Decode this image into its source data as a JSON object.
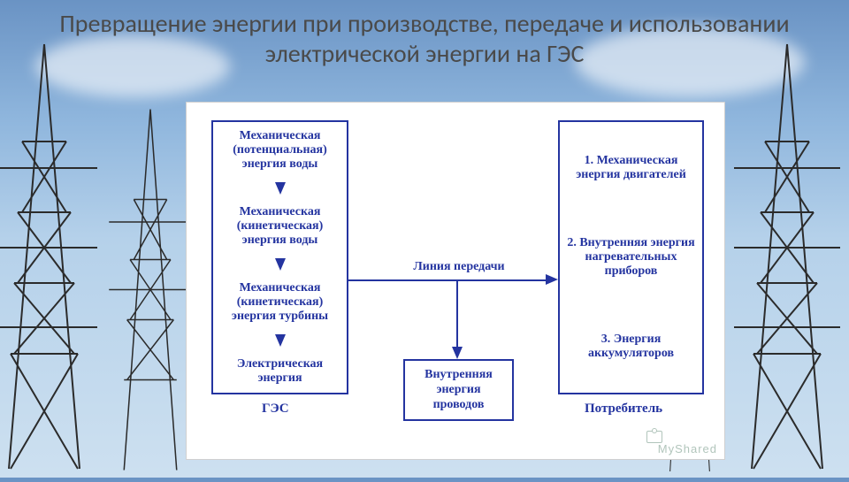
{
  "title": "Превращение энергии при производстве, передаче и использовании электрической энергии на ГЭС",
  "title_fontsize": 28,
  "title_color": "#4a4a4a",
  "background_gradient": [
    "#6a93c4",
    "#8fb6dd",
    "#b5d1ea",
    "#cde0f0"
  ],
  "diagram": {
    "panel_bg": "#ffffff",
    "border_color": "#2434a0",
    "text_color": "#2434a0",
    "block_fontsize": 14,
    "label_fontsize": 15,
    "left_column": {
      "label": "ГЭС",
      "blocks": [
        "Механическая (потенциальная) энергия воды",
        "Механическая (кинетическая) энергия воды",
        "Механическая (кинетическая) энергия турбины",
        "Электрическая энергия"
      ]
    },
    "right_column": {
      "label": "Потребитель",
      "blocks": [
        "1. Механическая энергия двигателей",
        "2. Внутренняя энергия нагревательных приборов",
        "3. Энергия аккумуляторов"
      ]
    },
    "transmission": {
      "line_label": "Линия передачи",
      "loss_box": "Внутренняя энергия проводов"
    }
  },
  "watermark": "MyShared"
}
